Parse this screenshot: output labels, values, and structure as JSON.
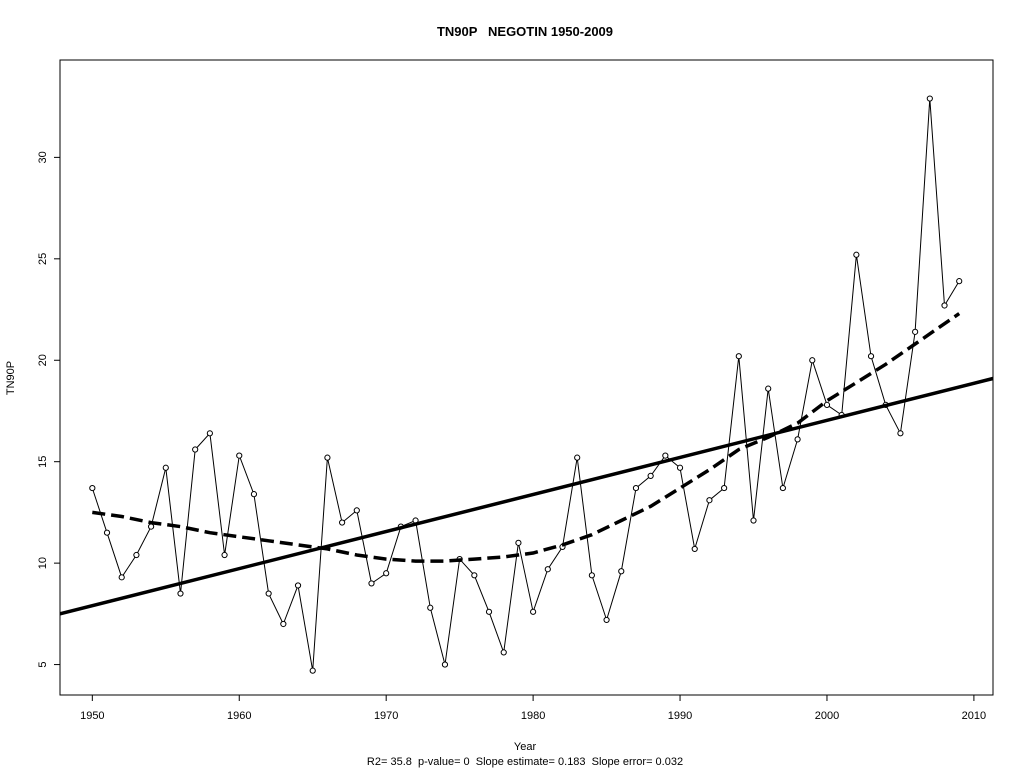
{
  "chart_data": {
    "type": "line",
    "title": "TN90P   NEGOTIN 1950-2009",
    "xlabel": "Year",
    "ylabel": "TN90P",
    "stats_line": "R2= 35.8  p-value= 0  Slope estimate= 0.183  Slope error= 0.032",
    "xlim": [
      1947.8,
      2011.3
    ],
    "ylim": [
      3.5,
      34.8
    ],
    "x_ticks": [
      1950,
      1960,
      1970,
      1980,
      1990,
      2000,
      2010
    ],
    "y_ticks": [
      5,
      10,
      15,
      20,
      25,
      30
    ],
    "grid": false,
    "legend": "none",
    "series": [
      {
        "style": "line-with-open-circles",
        "x": [
          1950,
          1951,
          1952,
          1953,
          1954,
          1955,
          1956,
          1957,
          1958,
          1959,
          1960,
          1961,
          1962,
          1963,
          1964,
          1965,
          1966,
          1967,
          1968,
          1969,
          1970,
          1971,
          1972,
          1973,
          1974,
          1975,
          1976,
          1977,
          1978,
          1979,
          1980,
          1981,
          1982,
          1983,
          1984,
          1985,
          1986,
          1987,
          1988,
          1989,
          1990,
          1991,
          1992,
          1993,
          1994,
          1995,
          1996,
          1997,
          1998,
          1999,
          2000,
          2001,
          2002,
          2003,
          2004,
          2005,
          2006,
          2007,
          2008,
          2009
        ],
        "values": [
          13.7,
          11.5,
          9.3,
          10.4,
          11.8,
          14.7,
          8.5,
          15.6,
          16.4,
          10.4,
          15.3,
          13.4,
          8.5,
          7.0,
          8.9,
          4.7,
          15.2,
          12.0,
          12.6,
          9.0,
          9.5,
          11.8,
          12.1,
          7.8,
          5.0,
          10.2,
          9.4,
          7.6,
          5.6,
          11.0,
          7.6,
          9.7,
          10.8,
          15.2,
          9.4,
          7.2,
          9.6,
          13.7,
          14.3,
          15.3,
          14.7,
          10.7,
          13.1,
          13.7,
          20.2,
          12.1,
          18.6,
          13.7,
          16.1,
          20.0,
          17.8,
          17.3,
          25.2,
          20.2,
          17.8,
          16.4,
          21.4,
          32.9,
          22.7,
          23.9
        ]
      },
      {
        "style": "solid-thick",
        "x": [
          1947.8,
          2011.3
        ],
        "values": [
          7.5,
          19.1
        ]
      },
      {
        "style": "dashed-thick",
        "x": [
          1950,
          1952,
          1954,
          1956,
          1958,
          1960,
          1962,
          1964,
          1966,
          1968,
          1970,
          1972,
          1974,
          1976,
          1978,
          1980,
          1982,
          1984,
          1986,
          1988,
          1990,
          1992,
          1994,
          1996,
          1998,
          2000,
          2002,
          2004,
          2006,
          2008,
          2009
        ],
        "values": [
          12.5,
          12.3,
          12.0,
          11.8,
          11.5,
          11.3,
          11.1,
          10.9,
          10.7,
          10.4,
          10.2,
          10.1,
          10.1,
          10.2,
          10.3,
          10.5,
          10.9,
          11.4,
          12.1,
          12.8,
          13.7,
          14.6,
          15.6,
          16.2,
          16.9,
          18.0,
          18.9,
          19.8,
          20.8,
          21.8,
          22.3
        ]
      }
    ]
  }
}
